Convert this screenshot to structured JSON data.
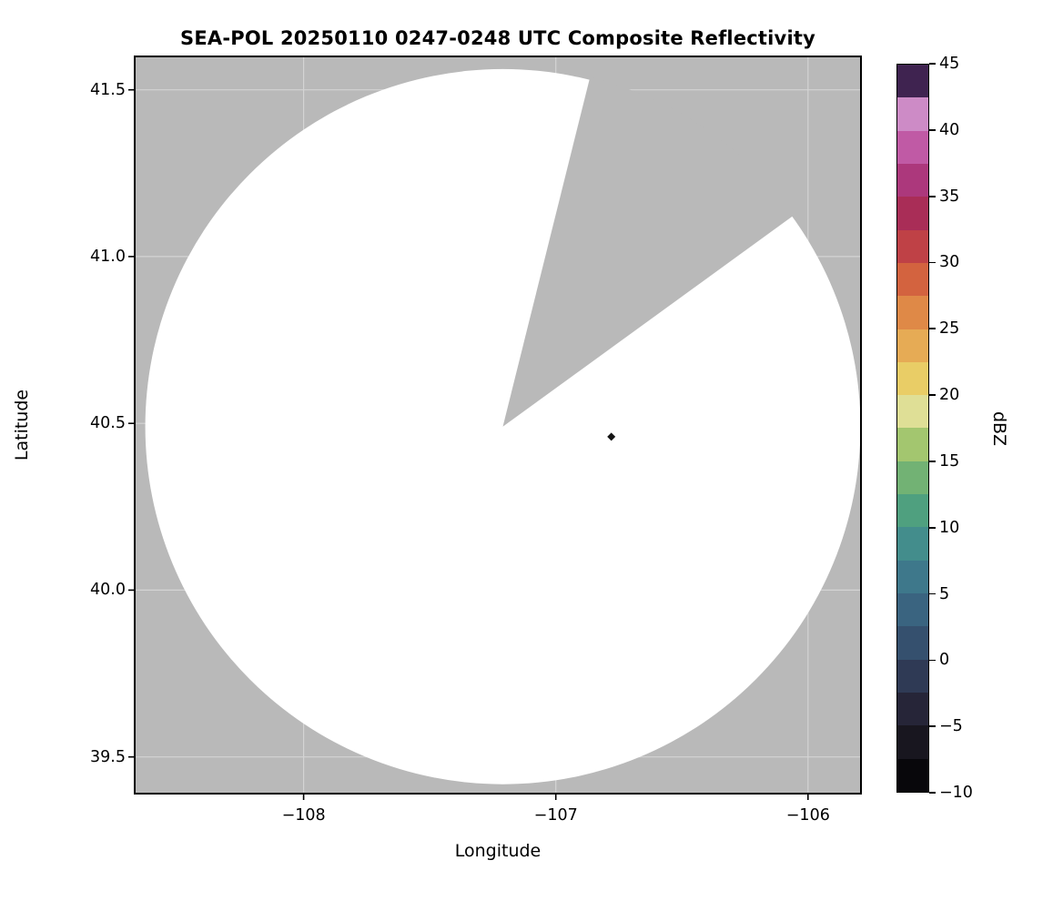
{
  "chart_data": {
    "type": "heatmap",
    "title": "SEA-POL 20250110 0247-0248 UTC Composite Reflectivity",
    "xlabel": "Longitude",
    "ylabel": "Latitude",
    "xlim": [
      -108.67,
      -105.79
    ],
    "ylim": [
      39.39,
      41.6
    ],
    "xticks": [
      {
        "value": -108,
        "label": "−108"
      },
      {
        "value": -107,
        "label": "−107"
      },
      {
        "value": -106,
        "label": "−106"
      }
    ],
    "yticks": [
      {
        "value": 41.5,
        "label": "41.5"
      },
      {
        "value": 41.0,
        "label": "41.0"
      },
      {
        "value": 40.5,
        "label": "40.5"
      },
      {
        "value": 40.0,
        "label": "40.0"
      },
      {
        "value": 39.5,
        "label": "39.5"
      }
    ],
    "grid": true,
    "background_color": "#b9b9b9",
    "gridline_color": "#d4d4d4",
    "coverage_fill": "#ffffff",
    "coverage": {
      "center_lon": -107.21,
      "center_lat": 40.49,
      "radius_deg_lat": 1.072,
      "blocked_sector_azimuth_deg": [
        14,
        54
      ]
    },
    "data_points": [
      {
        "lon": -106.78,
        "lat": 40.46,
        "marker": "diamond",
        "color": "#141414"
      }
    ],
    "colorbar": {
      "label": "dBZ",
      "min": -10,
      "max": 45,
      "ticks": [
        {
          "value": 45,
          "label": "45"
        },
        {
          "value": 40,
          "label": "40"
        },
        {
          "value": 35,
          "label": "35"
        },
        {
          "value": 30,
          "label": "30"
        },
        {
          "value": 25,
          "label": "25"
        },
        {
          "value": 20,
          "label": "20"
        },
        {
          "value": 15,
          "label": "15"
        },
        {
          "value": 10,
          "label": "10"
        },
        {
          "value": 5,
          "label": "5"
        },
        {
          "value": 0,
          "label": "0"
        },
        {
          "value": -5,
          "label": "−5"
        },
        {
          "value": -10,
          "label": "−10"
        }
      ],
      "segment_colors_bottom_to_top": [
        "#08070b",
        "#18161f",
        "#262538",
        "#2f3a55",
        "#35506e",
        "#3a6480",
        "#3e788b",
        "#438d8c",
        "#4fa07f",
        "#72b274",
        "#a3c66f",
        "#dfdf96",
        "#e9cd66",
        "#e6ab55",
        "#df8947",
        "#d3633f",
        "#bf4146",
        "#a92d57",
        "#ac387c",
        "#c05aa5",
        "#cd8bc6",
        "#3f2350"
      ]
    }
  }
}
